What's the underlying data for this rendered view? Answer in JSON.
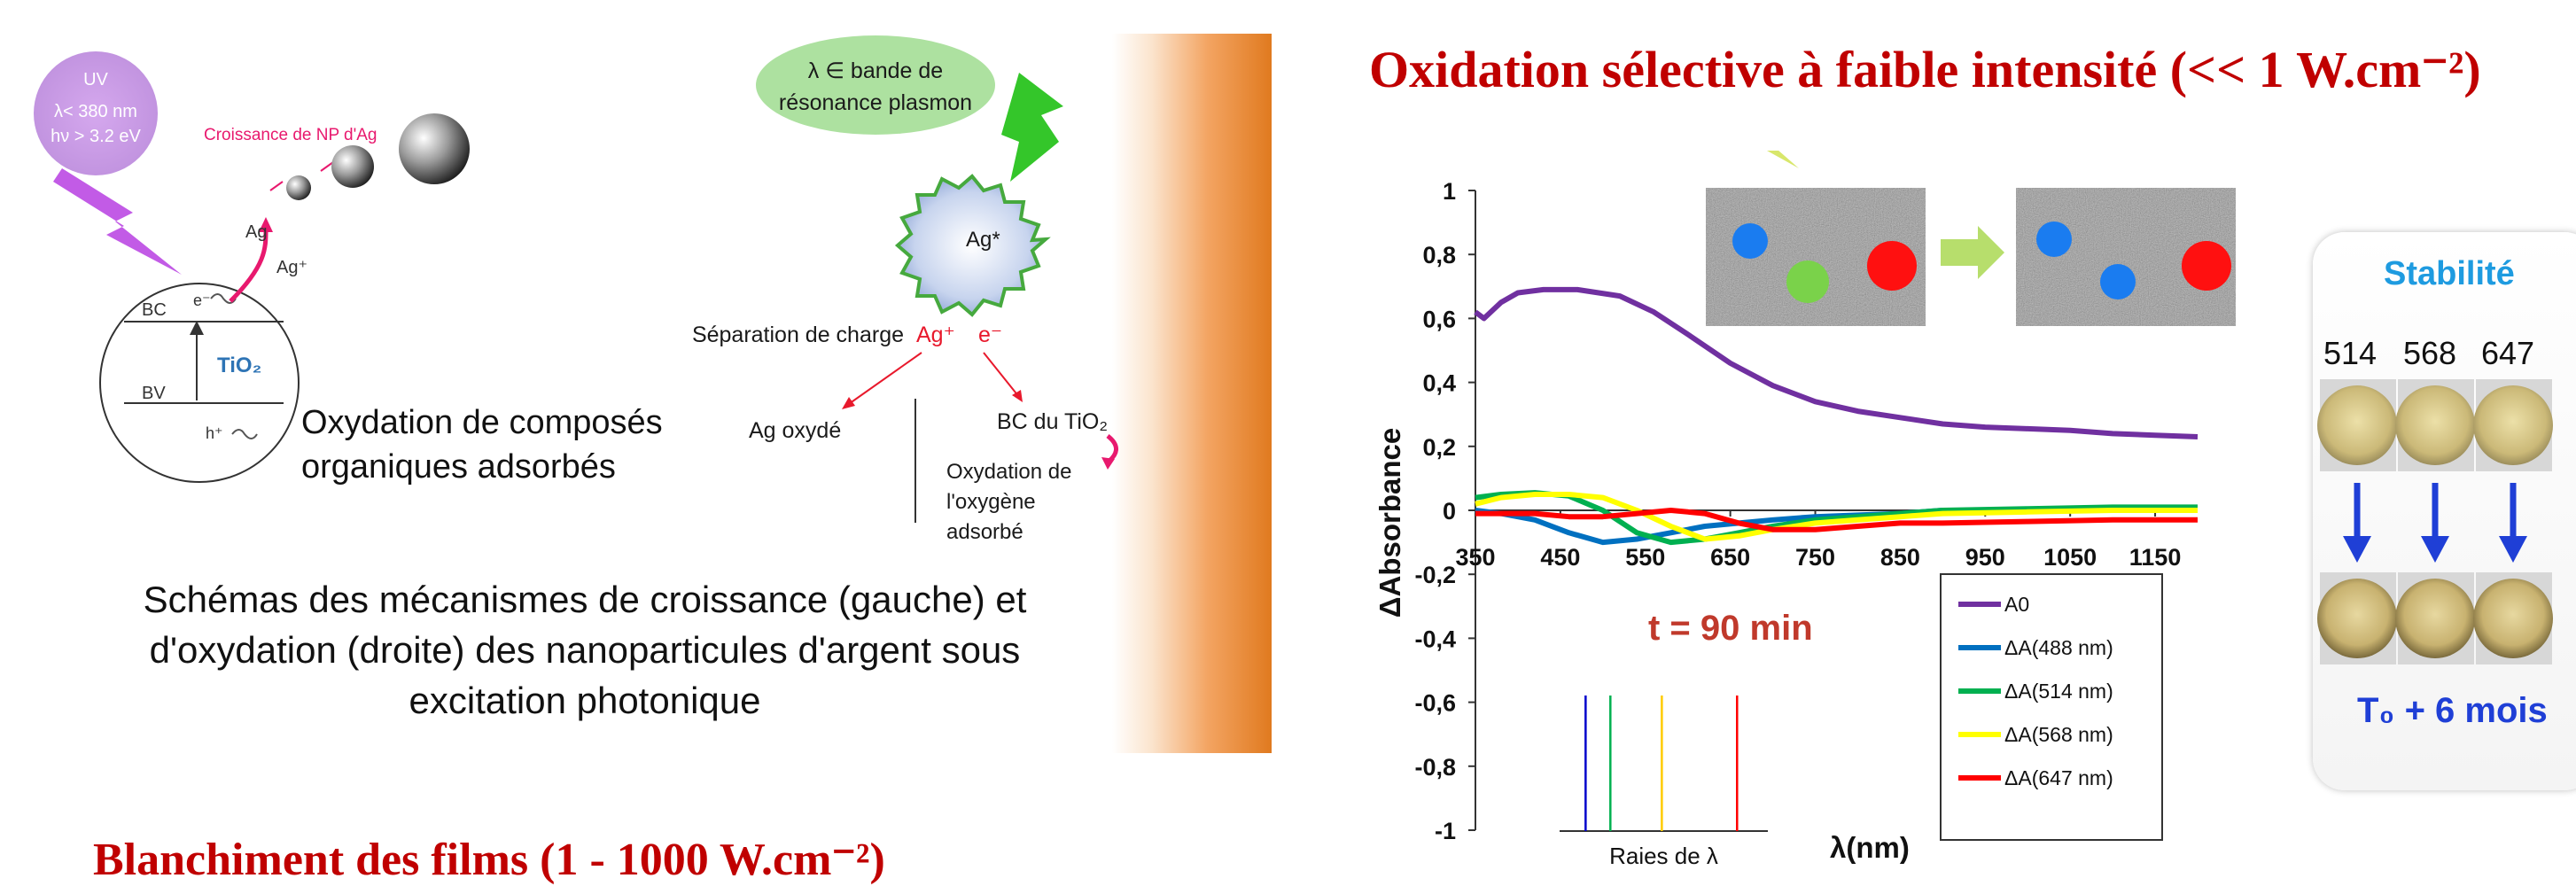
{
  "left_diagram": {
    "uv_label": "UV",
    "uv_lambda": "λ< 380 nm",
    "uv_energy": "hν > 3.2 eV",
    "growth_label": "Croissance de NP d'Ag",
    "ag_label": "Ag",
    "ag_plus_label": "Ag⁺",
    "bc_label": "BC",
    "bv_label": "BV",
    "electron_label": "e⁻",
    "hole_label": "h⁺",
    "tio2_label": "TiO₂",
    "oxidation_line1": "Oxydation de composés",
    "oxidation_line2": "organiques adsorbés"
  },
  "right_diagram": {
    "plasmon_line1": "λ ∈ bande de",
    "plasmon_line2": "résonance plasmon",
    "ag_star": "Ag*",
    "charge_separation": "Séparation de charge",
    "ag_plus": "Ag⁺",
    "e_minus": "e⁻",
    "ag_oxide": "Ag oxydé",
    "bc_tio2": "BC du TiO₂",
    "oxygen_line1": "Oxydation de",
    "oxygen_line2": "l'oxygène",
    "oxygen_line3": "adsorbé"
  },
  "caption": {
    "line1": "Schémas des mécanismes de croissance (gauche) et",
    "line2": "d'oxydation (droite) des nanoparticules d'argent sous",
    "line3": "excitation photonique"
  },
  "bottom_title": "Blanchiment des films (1 - 1000 W.cm⁻²)",
  "top_title": "Oxidation sélective à faible intensité (<< 1 W.cm⁻²)",
  "stability": {
    "title": "Stabilité",
    "wavelengths": [
      "514",
      "568",
      "647"
    ],
    "footer": "T₀ + 6 mois"
  },
  "chart_data": {
    "type": "line",
    "ylabel": "ΔAbsorbance",
    "xlabel": "λ(nm)",
    "ylim": [
      -1,
      1
    ],
    "xlim": [
      350,
      1200
    ],
    "x_ticks": [
      350,
      450,
      550,
      650,
      750,
      850,
      950,
      1050,
      1150
    ],
    "y_ticks": [
      "1",
      "0,8",
      "0,6",
      "0,4",
      "0,2",
      "0",
      "-0,2",
      "-0,4",
      "-0,6",
      "-0,8",
      "-1"
    ],
    "annotation": "t = 90 min",
    "raies_label": "Raies de λ",
    "raies": [
      488,
      514,
      568,
      647
    ],
    "series": [
      {
        "name": "A0",
        "color": "#7030a0",
        "x": [
          350,
          360,
          380,
          400,
          430,
          470,
          520,
          560,
          600,
          650,
          700,
          750,
          800,
          850,
          900,
          950,
          1000,
          1050,
          1100,
          1150,
          1200
        ],
        "y": [
          0.62,
          0.6,
          0.65,
          0.68,
          0.69,
          0.69,
          0.67,
          0.62,
          0.55,
          0.46,
          0.39,
          0.34,
          0.31,
          0.29,
          0.27,
          0.26,
          0.255,
          0.25,
          0.24,
          0.235,
          0.23
        ]
      },
      {
        "name": "ΔA(488 nm)",
        "color": "#0070c0",
        "x": [
          350,
          380,
          420,
          460,
          500,
          540,
          580,
          620,
          660,
          700,
          750,
          800,
          850,
          900,
          1000,
          1100,
          1200
        ],
        "y": [
          0.0,
          -0.01,
          -0.03,
          -0.07,
          -0.1,
          -0.09,
          -0.07,
          -0.05,
          -0.04,
          -0.03,
          -0.02,
          -0.015,
          -0.01,
          0.0,
          0.0,
          0.0,
          0.0
        ]
      },
      {
        "name": "ΔA(514 nm)",
        "color": "#00b050",
        "x": [
          350,
          380,
          420,
          460,
          500,
          540,
          580,
          620,
          660,
          700,
          750,
          800,
          850,
          900,
          1000,
          1100,
          1200
        ],
        "y": [
          0.04,
          0.05,
          0.055,
          0.045,
          0.0,
          -0.07,
          -0.1,
          -0.09,
          -0.07,
          -0.05,
          -0.03,
          -0.02,
          -0.01,
          0.0,
          0.005,
          0.01,
          0.01
        ]
      },
      {
        "name": "ΔA(568 nm)",
        "color": "#ffff00",
        "x": [
          350,
          380,
          420,
          460,
          500,
          540,
          580,
          620,
          660,
          700,
          750,
          800,
          850,
          900,
          1000,
          1100,
          1200
        ],
        "y": [
          0.02,
          0.04,
          0.05,
          0.05,
          0.04,
          0.0,
          -0.05,
          -0.09,
          -0.08,
          -0.06,
          -0.04,
          -0.03,
          -0.02,
          -0.01,
          -0.005,
          0.0,
          0.0
        ]
      },
      {
        "name": "ΔA(647 nm)",
        "color": "#ff0000",
        "x": [
          350,
          380,
          420,
          460,
          500,
          540,
          580,
          620,
          660,
          700,
          750,
          800,
          850,
          900,
          1000,
          1100,
          1200
        ],
        "y": [
          -0.01,
          -0.01,
          -0.01,
          -0.02,
          -0.02,
          -0.01,
          0.0,
          -0.01,
          -0.04,
          -0.06,
          -0.06,
          -0.05,
          -0.04,
          -0.04,
          -0.035,
          -0.03,
          -0.03
        ]
      }
    ]
  }
}
